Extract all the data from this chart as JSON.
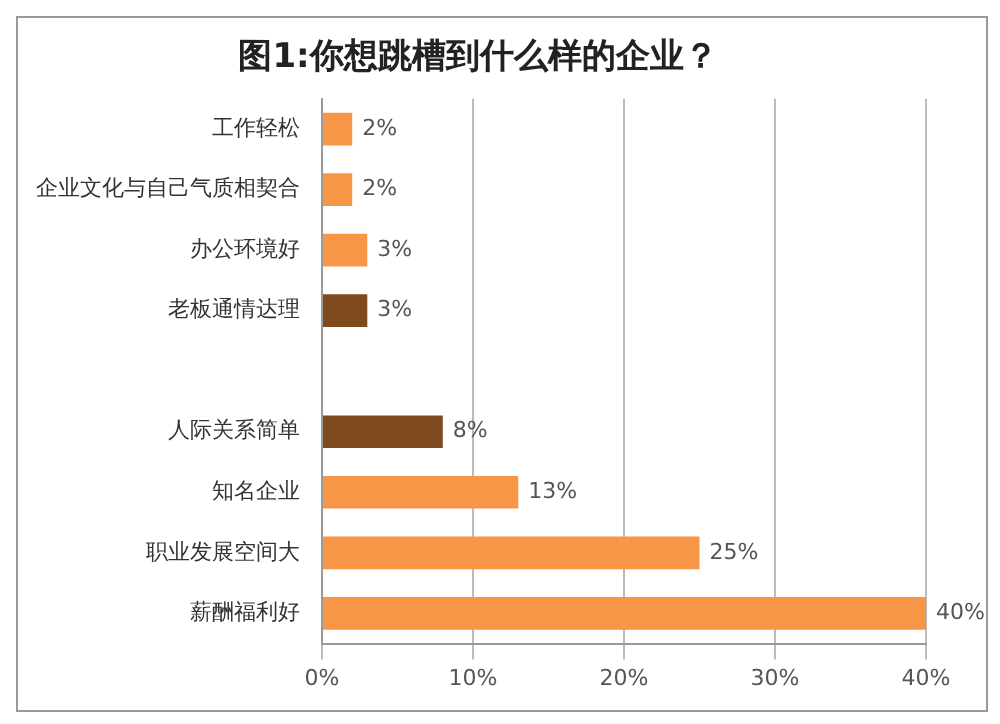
{
  "chart_data": {
    "type": "bar",
    "orientation": "horizontal",
    "title": "图1:你想跳槽到什么样的企业？",
    "categories": [
      "工作轻松",
      "企业文化与自己气质相契合",
      "办公环境好",
      "老板通情达理",
      null,
      "人际关系简单",
      "知名企业",
      "职业发展空间大",
      "薪酬福利好"
    ],
    "values": [
      2,
      2,
      3,
      3,
      null,
      8,
      13,
      25,
      40
    ],
    "value_labels": [
      "2%",
      "2%",
      "3%",
      "3%",
      null,
      "8%",
      "13%",
      "25%",
      "40%"
    ],
    "colors": [
      "#f79646",
      "#f79646",
      "#f79646",
      "#7f4a1d",
      "#f79646",
      "#7f4a1d",
      "#f79646",
      "#f79646",
      "#f79646"
    ],
    "xlim": [
      0,
      40
    ],
    "xticks": [
      {
        "value": 0,
        "label": "0%"
      },
      {
        "value": 10,
        "label": "10%"
      },
      {
        "value": 20,
        "label": "20%"
      },
      {
        "value": 30,
        "label": "30%"
      },
      {
        "value": 40,
        "label": "40%"
      }
    ],
    "grid": "x",
    "legend": false
  }
}
